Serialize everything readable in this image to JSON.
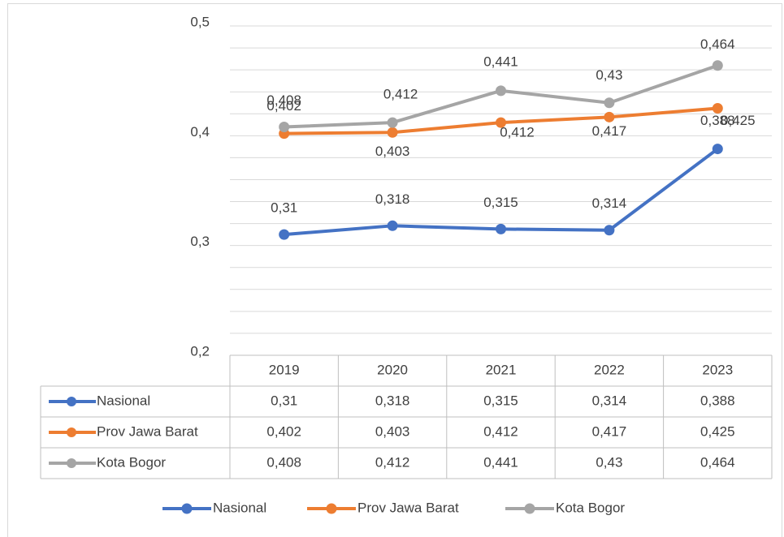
{
  "chart_data": {
    "type": "line",
    "categories": [
      "2019",
      "2020",
      "2021",
      "2022",
      "2023"
    ],
    "series": [
      {
        "name": "Nasional",
        "color": "#4472c4",
        "values": [
          0.31,
          0.318,
          0.315,
          0.314,
          0.388
        ],
        "value_labels": [
          "0,31",
          "0,318",
          "0,315",
          "0,314",
          "0,388"
        ]
      },
      {
        "name": "Prov Jawa Barat",
        "color": "#ed7d31",
        "values": [
          0.402,
          0.403,
          0.412,
          0.417,
          0.425
        ],
        "value_labels": [
          "0,402",
          "0,403",
          "0,412",
          "0,417",
          "0,425"
        ]
      },
      {
        "name": "Kota Bogor",
        "color": "#a5a5a5",
        "values": [
          0.408,
          0.412,
          0.441,
          0.43,
          0.464
        ],
        "value_labels": [
          "0,408",
          "0,412",
          "0,441",
          "0,43",
          "0,464"
        ]
      }
    ],
    "ylim": [
      0.2,
      0.5
    ],
    "yticks": [
      {
        "value": 0.2,
        "label": "0,2"
      },
      {
        "value": 0.3,
        "label": "0,3"
      },
      {
        "value": 0.4,
        "label": "0,4"
      },
      {
        "value": 0.5,
        "label": "0,5"
      }
    ],
    "y_minor_ticks": [
      0.22,
      0.24,
      0.26,
      0.28,
      0.32,
      0.34,
      0.36,
      0.38,
      0.42,
      0.44,
      0.46,
      0.48
    ],
    "grid": true,
    "legend": "bottom",
    "data_table": true
  }
}
